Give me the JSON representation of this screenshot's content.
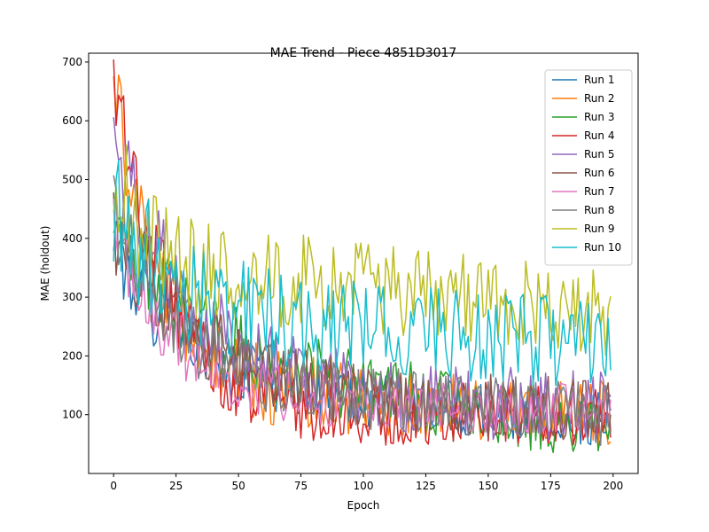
{
  "chart_data": {
    "type": "line",
    "title": "MAE Trend - Piece 4851D3017",
    "xlabel": "Epoch",
    "ylabel": "MAE (holdout)",
    "xlim": [
      -10,
      210
    ],
    "ylim": [
      0,
      715
    ],
    "x_ticks": [
      0,
      25,
      50,
      75,
      100,
      125,
      150,
      175,
      200
    ],
    "y_ticks": [
      100,
      200,
      300,
      400,
      500,
      600,
      700
    ],
    "grid": false,
    "legend_position": "upper right",
    "series": [
      {
        "name": "Run 1",
        "color": "#1f77b4",
        "start": 385,
        "mid": 140,
        "end": 95,
        "tau": 30,
        "noise": 22,
        "seed": 1
      },
      {
        "name": "Run 2",
        "color": "#ff7f0e",
        "start": 670,
        "mid": 150,
        "end": 100,
        "tau": 18,
        "noise": 28,
        "seed": 2
      },
      {
        "name": "Run 3",
        "color": "#2ca02c",
        "start": 390,
        "mid": 160,
        "end": 80,
        "tau": 45,
        "noise": 28,
        "seed": 3
      },
      {
        "name": "Run 4",
        "color": "#d62728",
        "start": 675,
        "mid": 95,
        "end": 100,
        "tau": 22,
        "noise": 25,
        "seed": 4
      },
      {
        "name": "Run 5",
        "color": "#9467bd",
        "start": 560,
        "mid": 140,
        "end": 110,
        "tau": 30,
        "noise": 28,
        "seed": 5
      },
      {
        "name": "Run 6",
        "color": "#8c564b",
        "start": 425,
        "mid": 130,
        "end": 105,
        "tau": 35,
        "noise": 25,
        "seed": 6
      },
      {
        "name": "Run 7",
        "color": "#e377c2",
        "start": 415,
        "mid": 120,
        "end": 110,
        "tau": 25,
        "noise": 20,
        "seed": 7
      },
      {
        "name": "Run 8",
        "color": "#7f7f7f",
        "start": 430,
        "mid": 140,
        "end": 100,
        "tau": 30,
        "noise": 25,
        "seed": 8
      },
      {
        "name": "Run 9",
        "color": "#bcbd22",
        "start": 550,
        "mid": 360,
        "end": 270,
        "tau": 10,
        "noise": 35,
        "seed": 9
      },
      {
        "name": "Run 10",
        "color": "#17becf",
        "start": 450,
        "mid": 270,
        "end": 220,
        "tau": 25,
        "noise": 35,
        "seed": 10
      }
    ]
  }
}
